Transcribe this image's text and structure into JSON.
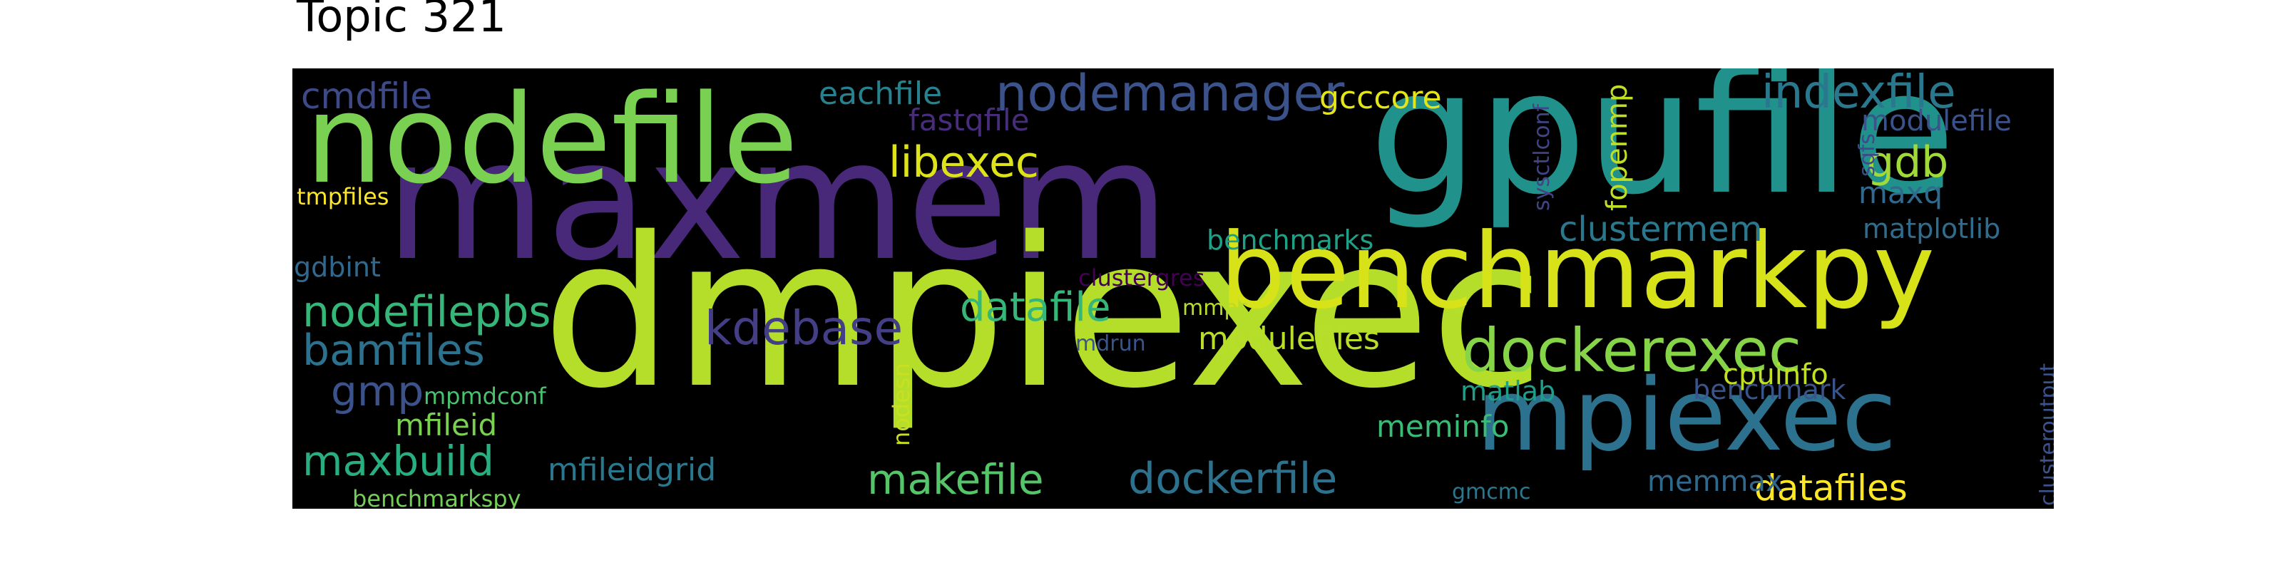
{
  "title": "Topic 321",
  "words": [
    {
      "text": "gpufile",
      "color": "#21918c",
      "vertical": false
    },
    {
      "text": "maxmem",
      "color": "#482878",
      "vertical": false
    },
    {
      "text": "dmpiexec",
      "color": "#b5de2b",
      "vertical": false
    },
    {
      "text": "nodefile",
      "color": "#7ad151",
      "vertical": false
    },
    {
      "text": "benchmarkpy",
      "color": "#d8e219",
      "vertical": false
    },
    {
      "text": "mpiexec",
      "color": "#2c728e",
      "vertical": false
    },
    {
      "text": "dockerexec",
      "color": "#86d549",
      "vertical": false
    },
    {
      "text": "nodemanager",
      "color": "#3b528b",
      "vertical": false
    },
    {
      "text": "indexfile",
      "color": "#2a788e",
      "vertical": false
    },
    {
      "text": "libexec",
      "color": "#dde318",
      "vertical": false
    },
    {
      "text": "gdb",
      "color": "#a0da39",
      "vertical": false
    },
    {
      "text": "nodefilepbs",
      "color": "#35b779",
      "vertical": false
    },
    {
      "text": "bamfiles",
      "color": "#2c728e",
      "vertical": false
    },
    {
      "text": "kdebase",
      "color": "#433e85",
      "vertical": false
    },
    {
      "text": "datafile",
      "color": "#35b779",
      "vertical": false
    },
    {
      "text": "dockerfile",
      "color": "#2c728e",
      "vertical": false
    },
    {
      "text": "makefile",
      "color": "#54c568",
      "vertical": false
    },
    {
      "text": "maxbuild",
      "color": "#29af7f",
      "vertical": false
    },
    {
      "text": "gmp",
      "color": "#3b528b",
      "vertical": false
    },
    {
      "text": "datafiles",
      "color": "#fde725",
      "vertical": false
    },
    {
      "text": "clustermem",
      "color": "#2a788e",
      "vertical": false
    },
    {
      "text": "modulefiles",
      "color": "#b8de29",
      "vertical": false
    },
    {
      "text": "cmdfile",
      "color": "#3e4989",
      "vertical": false
    },
    {
      "text": "eachfile",
      "color": "#26828e",
      "vertical": false
    },
    {
      "text": "gcccore",
      "color": "#e5e419",
      "vertical": false
    },
    {
      "text": "fastqfile",
      "color": "#472d7b",
      "vertical": false
    },
    {
      "text": "maxq",
      "color": "#306a8e",
      "vertical": false
    },
    {
      "text": "modulefile",
      "color": "#3b528b",
      "vertical": false
    },
    {
      "text": "matplotlib",
      "color": "#2f6c8e",
      "vertical": false
    },
    {
      "text": "benchmarks",
      "color": "#1fa187",
      "vertical": false
    },
    {
      "text": "benchmark",
      "color": "#39558c",
      "vertical": false
    },
    {
      "text": "cpuinfo",
      "color": "#c2df23",
      "vertical": false
    },
    {
      "text": "matlab",
      "color": "#1f9e89",
      "vertical": false
    },
    {
      "text": "meminfo",
      "color": "#3bbb75",
      "vertical": false
    },
    {
      "text": "mfileid",
      "color": "#7ad151",
      "vertical": false
    },
    {
      "text": "mfileidgrid",
      "color": "#2a788e",
      "vertical": false
    },
    {
      "text": "memmax",
      "color": "#31688e",
      "vertical": false
    },
    {
      "text": "gdbint",
      "color": "#31688e",
      "vertical": false
    },
    {
      "text": "tmpfiles",
      "color": "#fde725",
      "vertical": false
    },
    {
      "text": "clustergres",
      "color": "#440154",
      "vertical": false
    },
    {
      "text": "mmps",
      "color": "#b5de2b",
      "vertical": false
    },
    {
      "text": "mdrun",
      "color": "#39568c",
      "vertical": false
    },
    {
      "text": "mpmdconf",
      "color": "#4ac16d",
      "vertical": false
    },
    {
      "text": "benchmarkspy",
      "color": "#73d056",
      "vertical": false
    },
    {
      "text": "gmcmc",
      "color": "#2a788e",
      "vertical": false
    },
    {
      "text": "fopenmp",
      "color": "#bddf26",
      "vertical": true
    },
    {
      "text": "sysctlconf",
      "color": "#414487",
      "vertical": true
    },
    {
      "text": "sqfs",
      "color": "#3e4a89",
      "vertical": true
    },
    {
      "text": "nodesn",
      "color": "#c8e020",
      "vertical": true
    },
    {
      "text": "clusteroutput",
      "color": "#3b528b",
      "vertical": true
    }
  ]
}
